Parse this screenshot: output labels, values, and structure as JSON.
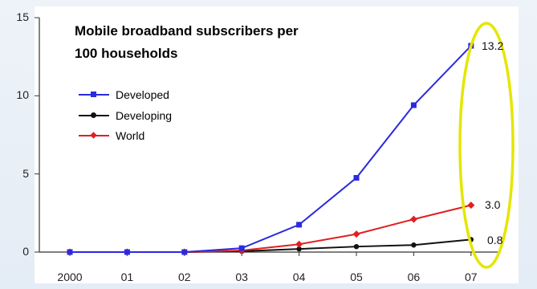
{
  "chart_data": {
    "type": "line",
    "title_lines": [
      "Mobile broadband subscribers per",
      "100 households"
    ],
    "xlabel": "",
    "ylabel": "",
    "categories": [
      "2000",
      "01",
      "02",
      "03",
      "04",
      "05",
      "06",
      "07"
    ],
    "ylim": [
      0,
      15
    ],
    "yticks": [
      "0",
      "5",
      "10",
      "15"
    ],
    "grid": false,
    "legend_position": "upper-left",
    "series": [
      {
        "name": "Developed",
        "color": "#2a2ae0",
        "marker": "square",
        "values": [
          0,
          0,
          0,
          0.25,
          1.75,
          4.75,
          9.4,
          13.2
        ]
      },
      {
        "name": "Developing",
        "color": "#111111",
        "marker": "circle",
        "values": [
          0,
          0,
          0,
          0.05,
          0.2,
          0.35,
          0.45,
          0.8
        ]
      },
      {
        "name": "World",
        "color": "#e02020",
        "marker": "diamond",
        "values": [
          0,
          0,
          0,
          0.1,
          0.5,
          1.15,
          2.1,
          3.0
        ]
      }
    ],
    "end_labels": [
      "13.2",
      "3.0",
      "0.8"
    ],
    "highlight_color": "#e5e600"
  }
}
